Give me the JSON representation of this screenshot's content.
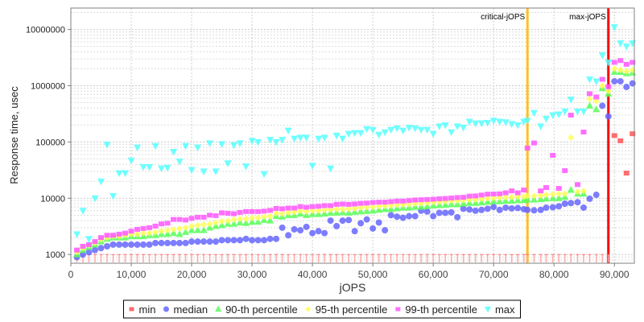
{
  "chart_data": {
    "type": "scatter",
    "title": "",
    "xlabel": "jOPS",
    "ylabel": "Response time, usec",
    "xlim": [
      0,
      93300
    ],
    "ylim": [
      700,
      24000000
    ],
    "yscale": "log",
    "grid": true,
    "legend_position": "bottom",
    "x_ticks": [
      {
        "value": 0,
        "label": "0"
      },
      {
        "value": 10000,
        "label": "10,000"
      },
      {
        "value": 20000,
        "label": "20,000"
      },
      {
        "value": 30000,
        "label": "30,000"
      },
      {
        "value": 40000,
        "label": "40,000"
      },
      {
        "value": 50000,
        "label": "50,000"
      },
      {
        "value": 60000,
        "label": "60,000"
      },
      {
        "value": 70000,
        "label": "70,000"
      },
      {
        "value": 80000,
        "label": "80,000"
      },
      {
        "value": 90000,
        "label": "90,000"
      }
    ],
    "y_ticks": [
      {
        "value": 1000,
        "label": "1000"
      },
      {
        "value": 10000,
        "label": "10000"
      },
      {
        "value": 100000,
        "label": "100000"
      },
      {
        "value": 1000000,
        "label": "1000000"
      },
      {
        "value": 10000000,
        "label": "10000000"
      }
    ],
    "annotations": [
      {
        "label": "critical-jOPS",
        "x": 75600,
        "color": "#ffc020"
      },
      {
        "label": "max-jOPS",
        "x": 89000,
        "color": "#ff0000"
      }
    ],
    "x": [
      1000,
      2000,
      3000,
      4000,
      5000,
      6000,
      7000,
      8000,
      9000,
      10000,
      11000,
      12000,
      13000,
      14000,
      15000,
      16000,
      17000,
      18000,
      19000,
      20000,
      21000,
      22000,
      23000,
      24000,
      25000,
      26000,
      27000,
      28000,
      29000,
      30000,
      31000,
      32000,
      33000,
      34000,
      35000,
      36000,
      37000,
      38000,
      39000,
      40000,
      41000,
      42000,
      43000,
      44000,
      45000,
      46000,
      47000,
      48000,
      49000,
      50000,
      51000,
      52000,
      53000,
      54000,
      55000,
      56000,
      57000,
      58000,
      59000,
      60000,
      61000,
      62000,
      63000,
      64000,
      65000,
      66000,
      67000,
      68000,
      69000,
      70000,
      71000,
      72000,
      73000,
      74000,
      75000,
      75600,
      76700,
      77800,
      78700,
      79800,
      80800,
      81800,
      82800,
      83900,
      84900,
      85900,
      87000,
      88000,
      89000,
      90000,
      91000,
      92000,
      93000
    ],
    "series": [
      {
        "name": "min",
        "color": "#ff5555",
        "marker": "square",
        "values": [
          1000,
          1000,
          1000,
          1000,
          1000,
          1000,
          1000,
          1000,
          1000,
          1000,
          1000,
          1000,
          1000,
          1000,
          1000,
          1000,
          1000,
          1000,
          1000,
          1000,
          1000,
          1000,
          1000,
          1000,
          1000,
          1000,
          1000,
          1000,
          1000,
          1000,
          1000,
          1000,
          1000,
          1000,
          1000,
          1000,
          1000,
          1000,
          1000,
          1000,
          1000,
          1000,
          1000,
          1000,
          1000,
          1000,
          1000,
          1000,
          1000,
          1000,
          1000,
          1000,
          1000,
          1000,
          1000,
          1000,
          1000,
          1000,
          1000,
          1000,
          1000,
          1000,
          1000,
          1000,
          1000,
          1000,
          1000,
          1000,
          1000,
          1000,
          1000,
          1000,
          1000,
          1000,
          1000,
          1000,
          1000,
          1000,
          1000,
          1000,
          1000,
          1000,
          1000,
          1000,
          1000,
          1000,
          1000,
          1000,
          1000,
          130000,
          105000,
          28000,
          140000
        ]
      },
      {
        "name": "median",
        "color": "#6666ff",
        "marker": "circle",
        "values": [
          900,
          1000,
          1100,
          1200,
          1300,
          1400,
          1500,
          1500,
          1500,
          1500,
          1500,
          1500,
          1500,
          1600,
          1600,
          1600,
          1600,
          1600,
          1600,
          1700,
          1700,
          1700,
          1700,
          1700,
          1800,
          1800,
          1800,
          1800,
          1900,
          1800,
          1800,
          1800,
          1900,
          1900,
          3000,
          2200,
          2800,
          2700,
          3100,
          2400,
          2600,
          2400,
          4000,
          3200,
          4000,
          4100,
          2600,
          3600,
          4200,
          2900,
          3700,
          2700,
          5000,
          4700,
          4500,
          4800,
          4800,
          6000,
          5800,
          4800,
          5500,
          5500,
          5600,
          4600,
          6500,
          6300,
          6000,
          6200,
          6500,
          7000,
          6200,
          6800,
          6600,
          6700,
          6400,
          6200,
          6100,
          6200,
          6800,
          6900,
          7200,
          8000,
          8200,
          8500,
          6800,
          9800,
          11500,
          440000,
          285000,
          1200000,
          1200000,
          950000,
          1100000
        ]
      },
      {
        "name": "90-th percentile",
        "color": "#55ff55",
        "marker": "triangle-up",
        "values": [
          1000,
          1200,
          1350,
          1500,
          1700,
          1900,
          2000,
          2000,
          2000,
          2100,
          2100,
          2100,
          2200,
          2200,
          2300,
          2300,
          2400,
          2300,
          2500,
          2700,
          2700,
          2700,
          3000,
          3200,
          3300,
          3500,
          3500,
          3700,
          3600,
          3800,
          3800,
          4100,
          4000,
          4800,
          4700,
          5000,
          5000,
          5300,
          5000,
          5200,
          5200,
          5300,
          5500,
          5500,
          5600,
          5500,
          5700,
          5800,
          5900,
          6000,
          6200,
          6400,
          6400,
          6600,
          6800,
          6800,
          7000,
          7000,
          7200,
          7400,
          7500,
          7600,
          7800,
          7800,
          8000,
          8200,
          8200,
          8400,
          8600,
          8800,
          8800,
          9000,
          9000,
          9200,
          9200,
          9400,
          9400,
          9600,
          9800,
          10000,
          10000,
          10500,
          14000,
          12000,
          12000,
          440000,
          380000,
          900000,
          720000,
          1750000,
          1750000,
          1650000,
          1700000
        ]
      },
      {
        "name": "95-th percentile",
        "color": "#ffff55",
        "marker": "diamond",
        "values": [
          1100,
          1300,
          1450,
          1600,
          1850,
          2000,
          2100,
          2100,
          2200,
          2300,
          2300,
          2400,
          2400,
          2500,
          2600,
          2700,
          2800,
          2900,
          3000,
          3200,
          3300,
          3400,
          3500,
          3700,
          3900,
          4000,
          4200,
          4300,
          4300,
          4500,
          4500,
          4700,
          4800,
          5400,
          5300,
          5600,
          5700,
          6000,
          5800,
          6000,
          6000,
          6200,
          6300,
          6400,
          6400,
          6500,
          6600,
          6800,
          6900,
          7000,
          7200,
          7300,
          7400,
          7600,
          7700,
          7800,
          8000,
          8100,
          8300,
          8500,
          8600,
          8800,
          9000,
          9000,
          9200,
          9400,
          9500,
          9700,
          9900,
          10100,
          10200,
          10400,
          10500,
          10700,
          10700,
          10900,
          11000,
          11200,
          11500,
          11800,
          12000,
          12000,
          120000,
          13000,
          13500,
          580000,
          530000,
          1000000,
          800000,
          2000000,
          1900000,
          1800000,
          1900000
        ]
      },
      {
        "name": "99-th percentile",
        "color": "#ff55ff",
        "marker": "square",
        "values": [
          1200,
          1400,
          1500,
          1700,
          2000,
          2200,
          2200,
          2300,
          2400,
          2600,
          2800,
          2900,
          3000,
          3200,
          3500,
          3600,
          4200,
          4200,
          4100,
          4400,
          4600,
          4600,
          5000,
          4900,
          5500,
          5400,
          5300,
          5600,
          5800,
          5800,
          5800,
          5900,
          6100,
          6600,
          6500,
          6700,
          6700,
          7100,
          6900,
          7100,
          7200,
          7400,
          7400,
          7800,
          7900,
          7800,
          7900,
          8100,
          8200,
          8400,
          8500,
          8500,
          8700,
          8900,
          8900,
          9100,
          9300,
          9400,
          9500,
          9600,
          9800,
          9900,
          10100,
          10300,
          10400,
          10900,
          11000,
          11400,
          11800,
          11900,
          12000,
          12500,
          13500,
          12500,
          14000,
          78000,
          96000,
          13500,
          15500,
          58000,
          15000,
          31000,
          300000,
          17500,
          150000,
          720000,
          630000,
          1300000,
          960000,
          2600000,
          2800000,
          2400000,
          2600000
        ]
      },
      {
        "name": "max",
        "color": "#55ffff",
        "marker": "triangle-down",
        "values": [
          2300,
          6000,
          1900,
          10000,
          20000,
          90000,
          11000,
          28000,
          28000,
          47000,
          80000,
          36000,
          36000,
          85000,
          34000,
          35000,
          67000,
          45000,
          85000,
          32000,
          80000,
          30000,
          95000,
          30000,
          92000,
          42000,
          88000,
          95000,
          37000,
          105000,
          100000,
          27000,
          110000,
          100000,
          110000,
          160000,
          115000,
          120000,
          120000,
          38000,
          115000,
          120000,
          34000,
          130000,
          115000,
          140000,
          145000,
          145000,
          170000,
          165000,
          135000,
          150000,
          165000,
          175000,
          160000,
          180000,
          175000,
          165000,
          165000,
          140000,
          190000,
          200000,
          150000,
          190000,
          180000,
          230000,
          215000,
          215000,
          220000,
          240000,
          230000,
          225000,
          210000,
          200000,
          230000,
          240000,
          330000,
          190000,
          260000,
          300000,
          310000,
          350000,
          570000,
          350000,
          350000,
          1300000,
          1200000,
          3500000,
          2600000,
          11000000,
          5700000,
          5000000,
          5700000
        ]
      }
    ]
  }
}
